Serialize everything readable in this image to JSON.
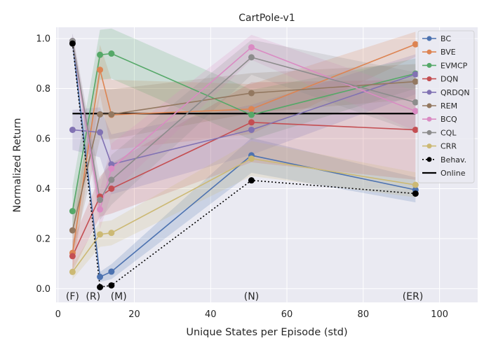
{
  "chart_data": {
    "type": "line",
    "title": "CartPole-v1",
    "xlabel": "Unique States per Episode (std)",
    "ylabel": "Normalized Return",
    "xlim": [
      -0.5,
      110
    ],
    "ylim": [
      -0.055,
      1.045
    ],
    "xticks": [
      0,
      20,
      40,
      60,
      80,
      100
    ],
    "yticks": [
      0.0,
      0.2,
      0.4,
      0.6,
      0.8,
      1.0
    ],
    "ytick_labels": [
      "0.0",
      "0.2",
      "0.4",
      "0.6",
      "0.8",
      "1.0"
    ],
    "grid": true,
    "legend_position": "top-right",
    "x": [
      3.8,
      11.0,
      14.0,
      50.7,
      93.7
    ],
    "region_labels": [
      {
        "text": "(F)",
        "x": 3.8
      },
      {
        "text": "(R)",
        "x": 9.2
      },
      {
        "text": "(M)",
        "x": 15.9
      },
      {
        "text": "(N)",
        "x": 50.7
      },
      {
        "text": "(ER)",
        "x": 93.0
      }
    ],
    "series": [
      {
        "name": "BC",
        "color": "#4c72b0",
        "values": [
          0.99,
          0.047,
          0.068,
          0.533,
          0.395
        ],
        "band": [
          0.03,
          0.02,
          0.03,
          0.07,
          0.05
        ],
        "marker": true,
        "dashed": false
      },
      {
        "name": "BVE",
        "color": "#dd8452",
        "values": [
          0.143,
          0.875,
          0.695,
          0.718,
          0.977
        ],
        "band": [
          0.08,
          0.1,
          0.14,
          0.1,
          0.05
        ],
        "marker": true,
        "dashed": false
      },
      {
        "name": "EVMCP",
        "color": "#55a868",
        "values": [
          0.31,
          0.935,
          0.94,
          0.695,
          0.86
        ],
        "band": [
          0.1,
          0.1,
          0.1,
          0.1,
          0.06
        ],
        "marker": true,
        "dashed": false
      },
      {
        "name": "DQN",
        "color": "#c44e52",
        "values": [
          0.13,
          0.368,
          0.4,
          0.665,
          0.635
        ],
        "band": [
          0.06,
          0.08,
          0.1,
          0.16,
          0.2
        ],
        "marker": true,
        "dashed": false
      },
      {
        "name": "QRDQN",
        "color": "#8172b3",
        "values": [
          0.635,
          0.625,
          0.497,
          0.635,
          0.857
        ],
        "band": [
          0.08,
          0.1,
          0.12,
          0.1,
          0.08
        ],
        "marker": true,
        "dashed": false
      },
      {
        "name": "REM",
        "color": "#937860",
        "values": [
          0.233,
          0.697,
          0.697,
          0.782,
          0.828
        ],
        "band": [
          0.1,
          0.1,
          0.1,
          0.08,
          0.07
        ],
        "marker": true,
        "dashed": false
      },
      {
        "name": "BCQ",
        "color": "#da8bc3",
        "values": [
          0.99,
          0.317,
          0.48,
          0.965,
          0.71
        ],
        "band": [
          0.03,
          0.08,
          0.1,
          0.05,
          0.08
        ],
        "marker": true,
        "dashed": false
      },
      {
        "name": "CQL",
        "color": "#8c8c8c",
        "values": [
          0.99,
          0.355,
          0.435,
          0.925,
          0.745
        ],
        "band": [
          0.03,
          0.08,
          0.1,
          0.07,
          0.12
        ],
        "marker": true,
        "dashed": false
      },
      {
        "name": "CRR",
        "color": "#ccb974",
        "values": [
          0.067,
          0.217,
          0.223,
          0.52,
          0.415
        ],
        "band": [
          0.03,
          0.05,
          0.05,
          0.07,
          0.05
        ],
        "marker": true,
        "dashed": false
      },
      {
        "name": "Behav.",
        "color": "#000000",
        "values": [
          0.98,
          0.006,
          0.013,
          0.433,
          0.38
        ],
        "band": null,
        "marker": true,
        "dashed": true
      }
    ],
    "reference_lines": [
      {
        "name": "Online",
        "color": "#000000",
        "y": 0.7,
        "x_range": [
          3.8,
          93.7
        ]
      }
    ],
    "legend": [
      "BC",
      "BVE",
      "EVMCP",
      "DQN",
      "QRDQN",
      "REM",
      "BCQ",
      "CQL",
      "CRR",
      "Behav.",
      "Online"
    ]
  }
}
